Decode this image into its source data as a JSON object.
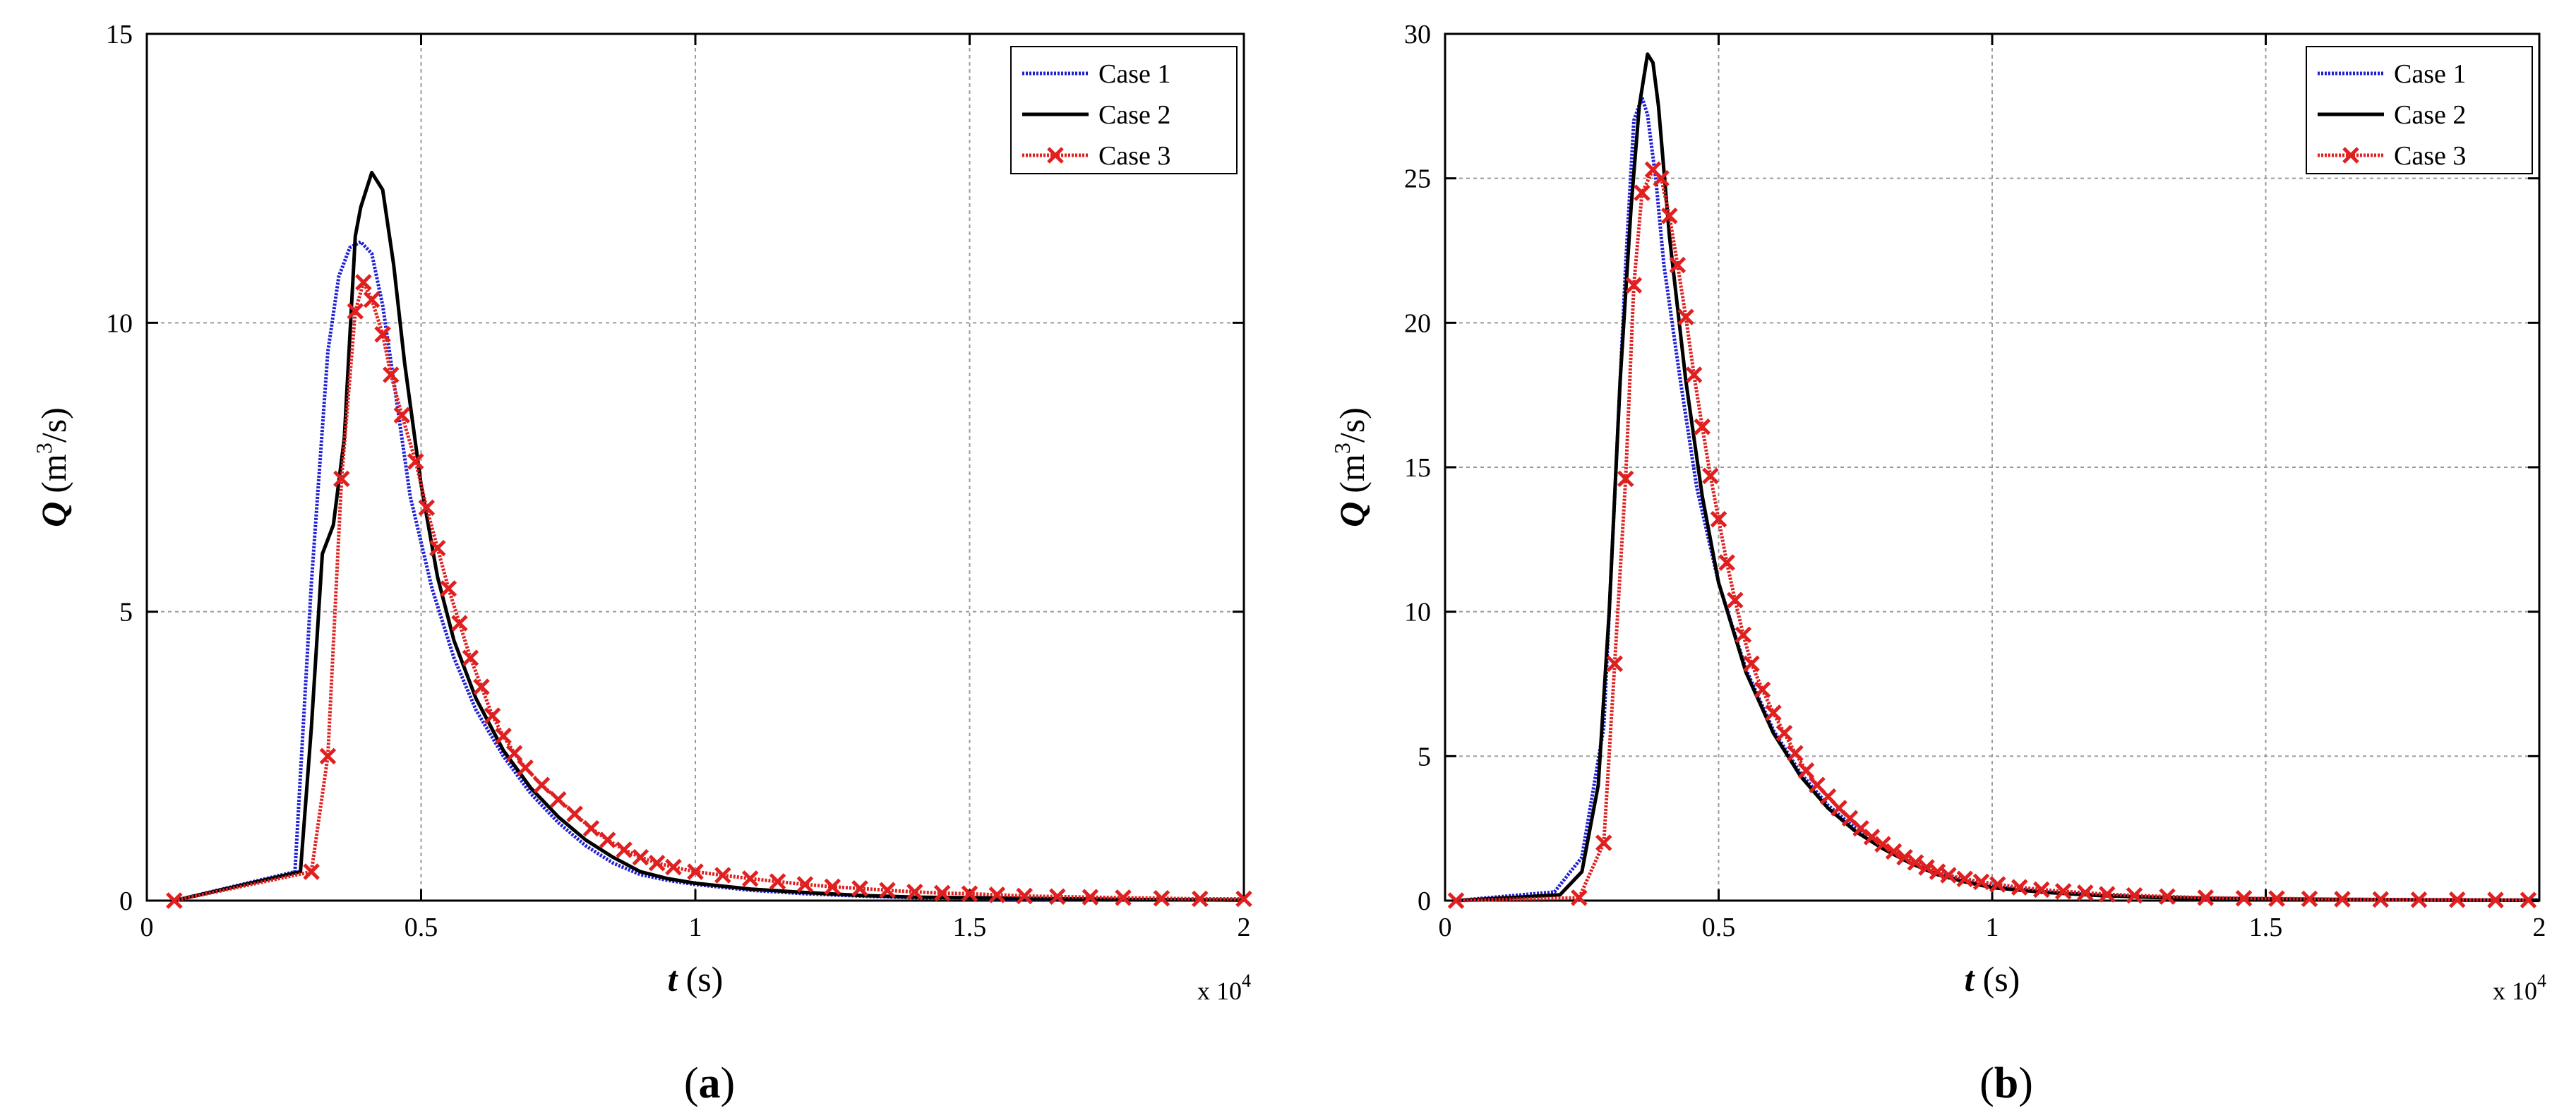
{
  "chart_data": [
    {
      "type": "line",
      "panel_label": "a",
      "title": "",
      "xlabel_var": "t",
      "xlabel_unit": "(s)",
      "ylabel_var": "Q",
      "ylabel_unit": "(m",
      "ylabel_sup": "3",
      "ylabel_tail": "/s)",
      "x_multiplier": "x 10",
      "x_multiplier_exp": "4",
      "xlim": [
        0,
        2
      ],
      "ylim": [
        0,
        15
      ],
      "xticks": [
        0,
        0.5,
        1,
        1.5,
        2
      ],
      "xtick_labels": [
        "0",
        "0.5",
        "1",
        "1.5",
        "2"
      ],
      "yticks": [
        0,
        5,
        10,
        15
      ],
      "ytick_labels": [
        "0",
        "5",
        "10",
        "15"
      ],
      "grid": true,
      "legend_position": "top-right",
      "series": [
        {
          "name": "Case 1",
          "color": "#1f1fd6",
          "style": "dotted",
          "marker": "none",
          "x": [
            0.05,
            0.27,
            0.3,
            0.33,
            0.35,
            0.37,
            0.39,
            0.41,
            0.43,
            0.45,
            0.48,
            0.52,
            0.56,
            0.6,
            0.65,
            0.7,
            0.75,
            0.8,
            0.85,
            0.9,
            0.95,
            1.0,
            1.1,
            1.2,
            1.3,
            1.4,
            1.6,
            1.8,
            2.0
          ],
          "y": [
            0,
            0.5,
            5.5,
            9.5,
            10.8,
            11.3,
            11.4,
            11.2,
            10.3,
            9.0,
            7.0,
            5.4,
            4.2,
            3.3,
            2.5,
            1.85,
            1.35,
            0.95,
            0.65,
            0.45,
            0.35,
            0.28,
            0.18,
            0.12,
            0.08,
            0.05,
            0.03,
            0.02,
            0.01
          ]
        },
        {
          "name": "Case 2",
          "color": "#000000",
          "style": "solid",
          "marker": "none",
          "x": [
            0.05,
            0.28,
            0.3,
            0.32,
            0.34,
            0.36,
            0.38,
            0.39,
            0.41,
            0.43,
            0.45,
            0.47,
            0.5,
            0.53,
            0.56,
            0.6,
            0.65,
            0.7,
            0.75,
            0.8,
            0.85,
            0.9,
            0.95,
            1.0,
            1.1,
            1.2,
            1.3,
            1.4,
            1.6,
            1.8,
            2.0
          ],
          "y": [
            0,
            0.5,
            3.0,
            6.0,
            6.5,
            8.0,
            11.5,
            12.0,
            12.6,
            12.3,
            11.0,
            9.3,
            7.2,
            5.6,
            4.5,
            3.5,
            2.6,
            1.95,
            1.45,
            1.05,
            0.75,
            0.5,
            0.38,
            0.3,
            0.2,
            0.14,
            0.09,
            0.06,
            0.04,
            0.02,
            0.01
          ]
        },
        {
          "name": "Case 3",
          "color": "#e02020",
          "style": "dotted",
          "marker": "x",
          "x": [
            0.05,
            0.3,
            0.33,
            0.355,
            0.38,
            0.395,
            0.41,
            0.43,
            0.445,
            0.465,
            0.49,
            0.51,
            0.53,
            0.55,
            0.57,
            0.59,
            0.61,
            0.63,
            0.65,
            0.67,
            0.69,
            0.72,
            0.75,
            0.78,
            0.81,
            0.84,
            0.87,
            0.9,
            0.93,
            0.96,
            1.0,
            1.05,
            1.1,
            1.15,
            1.2,
            1.25,
            1.3,
            1.35,
            1.4,
            1.45,
            1.5,
            1.55,
            1.6,
            1.66,
            1.72,
            1.78,
            1.85,
            1.92,
            2.0
          ],
          "y": [
            0,
            0.5,
            2.5,
            7.3,
            10.2,
            10.7,
            10.4,
            9.8,
            9.1,
            8.4,
            7.6,
            6.8,
            6.1,
            5.4,
            4.8,
            4.2,
            3.7,
            3.2,
            2.85,
            2.55,
            2.3,
            2.0,
            1.75,
            1.5,
            1.25,
            1.05,
            0.88,
            0.75,
            0.65,
            0.58,
            0.5,
            0.44,
            0.38,
            0.33,
            0.28,
            0.24,
            0.21,
            0.18,
            0.15,
            0.13,
            0.12,
            0.1,
            0.08,
            0.07,
            0.06,
            0.05,
            0.04,
            0.03,
            0.03
          ]
        }
      ]
    },
    {
      "type": "line",
      "panel_label": "b",
      "title": "",
      "xlabel_var": "t",
      "xlabel_unit": "(s)",
      "ylabel_var": "Q",
      "ylabel_unit": "(m",
      "ylabel_sup": "3",
      "ylabel_tail": "/s)",
      "x_multiplier": "x 10",
      "x_multiplier_exp": "4",
      "xlim": [
        0,
        2
      ],
      "ylim": [
        0,
        30
      ],
      "xticks": [
        0,
        0.5,
        1,
        1.5,
        2
      ],
      "xtick_labels": [
        "0",
        "0.5",
        "1",
        "1.5",
        "2"
      ],
      "yticks": [
        0,
        5,
        10,
        15,
        20,
        25,
        30
      ],
      "ytick_labels": [
        "0",
        "5",
        "10",
        "15",
        "20",
        "25",
        "30"
      ],
      "grid": true,
      "legend_position": "top-right",
      "series": [
        {
          "name": "Case 1",
          "color": "#1f1fd6",
          "style": "dotted",
          "marker": "none",
          "x": [
            0.02,
            0.2,
            0.25,
            0.29,
            0.31,
            0.33,
            0.345,
            0.36,
            0.37,
            0.385,
            0.4,
            0.43,
            0.46,
            0.5,
            0.55,
            0.6,
            0.65,
            0.7,
            0.75,
            0.8,
            0.85,
            0.9,
            0.95,
            1.0,
            1.1,
            1.2,
            1.3,
            1.4,
            1.6,
            1.8,
            2.0
          ],
          "y": [
            0,
            0.3,
            1.5,
            6.0,
            14.0,
            22.0,
            27.0,
            27.8,
            27.2,
            25.0,
            22.0,
            18.0,
            14.3,
            11.0,
            8.0,
            5.9,
            4.4,
            3.3,
            2.5,
            1.85,
            1.35,
            0.95,
            0.7,
            0.5,
            0.3,
            0.18,
            0.12,
            0.08,
            0.05,
            0.03,
            0.02
          ]
        },
        {
          "name": "Case 2",
          "color": "#000000",
          "style": "solid",
          "marker": "none",
          "x": [
            0.02,
            0.21,
            0.25,
            0.28,
            0.3,
            0.32,
            0.34,
            0.355,
            0.37,
            0.38,
            0.39,
            0.41,
            0.44,
            0.47,
            0.5,
            0.55,
            0.6,
            0.65,
            0.7,
            0.75,
            0.8,
            0.85,
            0.9,
            0.95,
            1.0,
            1.1,
            1.2,
            1.3,
            1.4,
            1.6,
            1.8,
            2.0
          ],
          "y": [
            0,
            0.2,
            1.0,
            4.0,
            10.0,
            18.0,
            24.0,
            27.5,
            29.3,
            29.0,
            27.5,
            23.0,
            18.0,
            14.0,
            11.0,
            7.9,
            5.8,
            4.3,
            3.2,
            2.4,
            1.8,
            1.3,
            0.9,
            0.65,
            0.45,
            0.28,
            0.17,
            0.11,
            0.07,
            0.04,
            0.02,
            0.01
          ]
        },
        {
          "name": "Case 3",
          "color": "#e02020",
          "style": "dotted",
          "marker": "x",
          "x": [
            0.02,
            0.245,
            0.29,
            0.31,
            0.33,
            0.345,
            0.36,
            0.38,
            0.395,
            0.41,
            0.425,
            0.44,
            0.455,
            0.47,
            0.485,
            0.5,
            0.515,
            0.53,
            0.545,
            0.56,
            0.58,
            0.6,
            0.62,
            0.64,
            0.66,
            0.68,
            0.7,
            0.72,
            0.74,
            0.76,
            0.78,
            0.8,
            0.82,
            0.84,
            0.86,
            0.88,
            0.9,
            0.92,
            0.95,
            0.98,
            1.01,
            1.05,
            1.09,
            1.13,
            1.17,
            1.21,
            1.26,
            1.32,
            1.39,
            1.46,
            1.52,
            1.58,
            1.64,
            1.71,
            1.78,
            1.85,
            1.92,
            1.98
          ],
          "y": [
            0,
            0.1,
            2.0,
            8.2,
            14.6,
            21.3,
            24.5,
            25.3,
            25.0,
            23.7,
            22.0,
            20.2,
            18.2,
            16.4,
            14.7,
            13.2,
            11.7,
            10.4,
            9.2,
            8.2,
            7.3,
            6.5,
            5.8,
            5.1,
            4.5,
            4.0,
            3.6,
            3.2,
            2.85,
            2.5,
            2.2,
            1.95,
            1.7,
            1.5,
            1.32,
            1.15,
            1.0,
            0.88,
            0.75,
            0.65,
            0.56,
            0.46,
            0.38,
            0.32,
            0.27,
            0.22,
            0.18,
            0.14,
            0.1,
            0.08,
            0.07,
            0.06,
            0.05,
            0.04,
            0.03,
            0.03,
            0.02,
            0.02
          ]
        }
      ]
    }
  ]
}
